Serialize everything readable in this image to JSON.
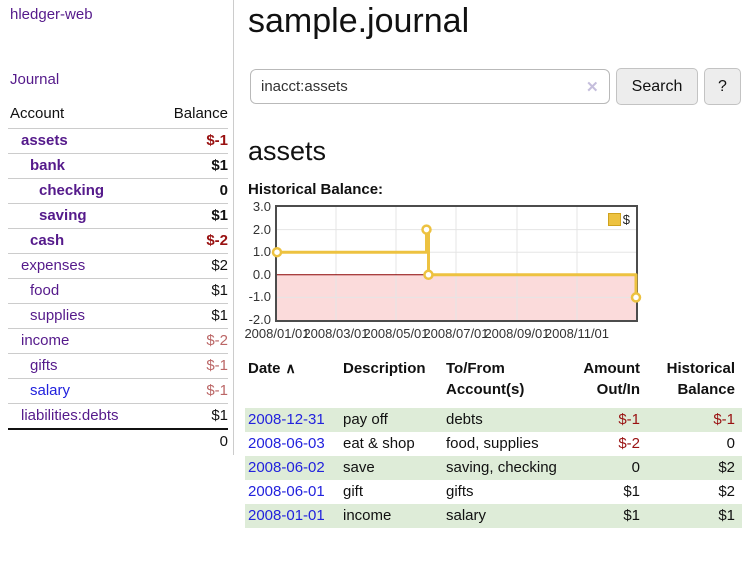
{
  "app": {
    "brand": "hledger-web",
    "nav_journal": "Journal"
  },
  "sidebar": {
    "header": {
      "account": "Account",
      "balance": "Balance"
    },
    "accounts": [
      {
        "name": "assets",
        "depth": 1,
        "bold": true,
        "name_color": "purple",
        "balance": "$-1",
        "balance_color": "negative"
      },
      {
        "name": "bank",
        "depth": 2,
        "bold": true,
        "name_color": "purple",
        "balance": "$1",
        "balance_color": "normal"
      },
      {
        "name": "checking",
        "depth": 3,
        "bold": true,
        "name_color": "purple",
        "balance": "0",
        "balance_color": "normal"
      },
      {
        "name": "saving",
        "depth": 3,
        "bold": true,
        "name_color": "purple",
        "balance": "$1",
        "balance_color": "normal"
      },
      {
        "name": "cash",
        "depth": 2,
        "bold": true,
        "name_color": "purple",
        "balance": "$-2",
        "balance_color": "negative"
      },
      {
        "name": "expenses",
        "depth": 1,
        "bold": false,
        "name_color": "purple",
        "balance": "$2",
        "balance_color": "normal"
      },
      {
        "name": "food",
        "depth": 2,
        "bold": false,
        "name_color": "purple",
        "balance": "$1",
        "balance_color": "normal"
      },
      {
        "name": "supplies",
        "depth": 2,
        "bold": false,
        "name_color": "purple",
        "balance": "$1",
        "balance_color": "normal"
      },
      {
        "name": "income",
        "depth": 1,
        "bold": false,
        "name_color": "purple",
        "balance": "$-2",
        "balance_color": "negative-faded"
      },
      {
        "name": "gifts",
        "depth": 2,
        "bold": false,
        "name_color": "purple",
        "balance": "$-1",
        "balance_color": "negative-faded"
      },
      {
        "name": "salary",
        "depth": 2,
        "bold": false,
        "name_color": "blue",
        "balance": "$-1",
        "balance_color": "negative-faded"
      },
      {
        "name": "liabilities:debts",
        "depth": 1,
        "bold": false,
        "name_color": "purple",
        "balance": "$1",
        "balance_color": "normal"
      }
    ],
    "total": "0"
  },
  "header": {
    "title": "sample.journal"
  },
  "search": {
    "value": "inacct:assets",
    "clear_icon": "✕",
    "button_label": "Search",
    "help_label": "?"
  },
  "main": {
    "account_title": "assets",
    "chart_title": "Historical Balance:"
  },
  "chart_data": {
    "type": "line",
    "step": true,
    "title": "Historical Balance:",
    "series": [
      {
        "name": "$",
        "color": "#edc240",
        "points": [
          {
            "x": "2008-01-01",
            "y": 1
          },
          {
            "x": "2008-06-01",
            "y": 2
          },
          {
            "x": "2008-06-03",
            "y": 0
          },
          {
            "x": "2008-12-31",
            "y": -1
          }
        ]
      }
    ],
    "x_ticks": [
      "2008/01/01",
      "2008/03/01",
      "2008/05/01",
      "2008/07/01",
      "2008/09/01",
      "2008/11/01"
    ],
    "y_ticks": [
      "3.0",
      "2.0",
      "1.0",
      "0.0",
      "-1.0",
      "-2.0"
    ],
    "xlim": [
      "2008-01-01",
      "2008-12-31"
    ],
    "ylim": [
      -2,
      3
    ],
    "grid": true,
    "legend_position": "top-right",
    "negative_region": {
      "from": 0,
      "to": -2,
      "fill": "#fbdbdb",
      "line_color": "#8b0000"
    }
  },
  "register": {
    "columns": {
      "date": "Date",
      "description": "Description",
      "accounts": "To/From Account(s)",
      "amount": "Amount Out/In",
      "balance": "Historical Balance"
    },
    "sort_indicator": "∧",
    "rows": [
      {
        "date": "2008-12-31",
        "description": "pay off",
        "accounts": "debts",
        "amount": "$-1",
        "amount_neg": true,
        "balance": "$-1",
        "balance_neg": true,
        "shaded": true
      },
      {
        "date": "2008-06-03",
        "description": "eat & shop",
        "accounts": "food, supplies",
        "amount": "$-2",
        "amount_neg": true,
        "balance": "0",
        "balance_neg": false,
        "shaded": false
      },
      {
        "date": "2008-06-02",
        "description": "save",
        "accounts": "saving, checking",
        "amount": "0",
        "amount_neg": false,
        "balance": "$2",
        "balance_neg": false,
        "shaded": true
      },
      {
        "date": "2008-06-01",
        "description": "gift",
        "accounts": "gifts",
        "amount": "$1",
        "amount_neg": false,
        "balance": "$2",
        "balance_neg": false,
        "shaded": false
      },
      {
        "date": "2008-01-01",
        "description": "income",
        "accounts": "salary",
        "amount": "$1",
        "amount_neg": false,
        "balance": "$1",
        "balance_neg": false,
        "shaded": true
      }
    ]
  },
  "colors": {
    "link_purple": "#551a8b",
    "link_blue": "#2222dd",
    "negative": "#991111",
    "negative_faded": "#bb6666",
    "row_shaded_green": "#deecd8",
    "chart_line": "#edc240",
    "chart_negative_fill": "#fbdbdb",
    "chart_zero_line": "#8b0000"
  }
}
